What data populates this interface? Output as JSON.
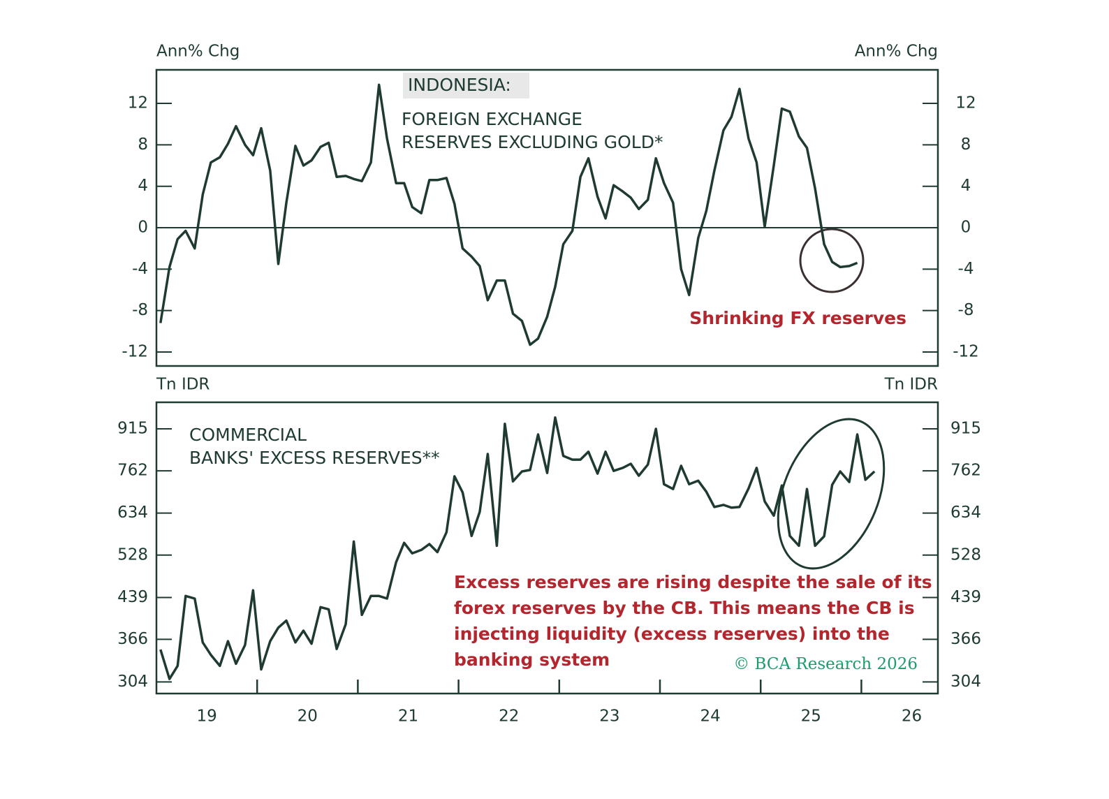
{
  "chart_data": [
    {
      "type": "line",
      "title": "INDONESIA:",
      "subtitle": [
        "FOREIGN EXCHANGE",
        "RESERVES EXCLUDING GOLD*"
      ],
      "y_label": "Ann% Chg",
      "annotation": "Shrinking FX reserves",
      "xlim": [
        2019,
        2026.76
      ],
      "ylim": [
        -13.35,
        15.24
      ],
      "yticks": [
        -12,
        -8,
        -4,
        0,
        4,
        8,
        12
      ],
      "series": [
        {
          "color": "#1f3a33",
          "x": [
            2019.04,
            2019.13,
            2019.21,
            2019.29,
            2019.38,
            2019.46,
            2019.54,
            2019.63,
            2019.71,
            2019.79,
            2019.88,
            2019.96,
            2020.04,
            2020.13,
            2020.21,
            2020.29,
            2020.38,
            2020.46,
            2020.54,
            2020.63,
            2020.71,
            2020.79,
            2020.88,
            2020.96,
            2021.04,
            2021.13,
            2021.21,
            2021.29,
            2021.38,
            2021.46,
            2021.54,
            2021.63,
            2021.71,
            2021.79,
            2021.88,
            2021.96,
            2022.04,
            2022.13,
            2022.21,
            2022.29,
            2022.38,
            2022.46,
            2022.54,
            2022.63,
            2022.71,
            2022.79,
            2022.88,
            2022.96,
            2023.04,
            2023.13,
            2023.21,
            2023.29,
            2023.38,
            2023.46,
            2023.54,
            2023.63,
            2023.71,
            2023.79,
            2023.88,
            2023.96,
            2024.04,
            2024.13,
            2024.21,
            2024.29,
            2024.38,
            2024.46,
            2024.54,
            2024.63,
            2024.71,
            2024.79,
            2024.88,
            2024.96,
            2025.04,
            2025.13,
            2025.21,
            2025.29,
            2025.38,
            2025.46,
            2025.54,
            2025.63,
            2025.71,
            2025.79,
            2025.88,
            2025.96
          ],
          "values": [
            -9.2,
            -3.8,
            -1.1,
            -0.3,
            -2.0,
            3.2,
            6.3,
            6.8,
            8.1,
            9.8,
            8.0,
            7.0,
            9.6,
            5.5,
            -3.5,
            2.4,
            7.9,
            6.0,
            6.5,
            7.8,
            8.2,
            4.9,
            5.0,
            4.7,
            4.5,
            6.3,
            13.8,
            8.6,
            4.3,
            4.3,
            2.0,
            1.4,
            4.6,
            4.6,
            4.8,
            2.3,
            -2.0,
            -2.8,
            -3.7,
            -7.0,
            -5.1,
            -5.1,
            -8.3,
            -9.0,
            -11.3,
            -10.7,
            -8.6,
            -5.7,
            -1.6,
            -0.3,
            4.9,
            6.7,
            3.0,
            0.9,
            4.1,
            3.5,
            2.9,
            1.8,
            2.7,
            6.7,
            4.3,
            2.4,
            -4.0,
            -6.5,
            -1.0,
            1.6,
            5.5,
            9.4,
            10.7,
            13.4,
            8.6,
            6.3,
            0.1,
            6.0,
            11.5,
            11.2,
            8.8,
            7.7,
            3.8,
            -1.6,
            -3.3,
            -3.8,
            -3.7,
            -3.4
          ]
        }
      ]
    },
    {
      "type": "line",
      "subtitle": [
        "COMMERCIAL",
        "BANKS' EXCESS RESERVES**"
      ],
      "y_label": "Tn IDR",
      "annotation": [
        "Excess reserves are rising despite the sale of its",
        "forex reserves by the CB. This means the CB is",
        "injecting liquidity (excess reserves) into the",
        "banking system"
      ],
      "source": "© BCA Research 2026",
      "log_scale": true,
      "xlim": [
        2019,
        2026.76
      ],
      "xticks": [
        {
          "value": 2019.5,
          "label": "19"
        },
        {
          "value": 2020.5,
          "label": "20"
        },
        {
          "value": 2021.5,
          "label": "21"
        },
        {
          "value": 2022.5,
          "label": "22"
        },
        {
          "value": 2023.5,
          "label": "23"
        },
        {
          "value": 2024.5,
          "label": "24"
        },
        {
          "value": 2025.5,
          "label": "25"
        },
        {
          "value": 2026.5,
          "label": "26"
        }
      ],
      "ylim": [
        289,
        1027
      ],
      "yticks": [
        304,
        366,
        439,
        528,
        634,
        762,
        915
      ],
      "series": [
        {
          "color": "#1f3a33",
          "x": [
            2019.04,
            2019.13,
            2019.21,
            2019.29,
            2019.38,
            2019.46,
            2019.54,
            2019.63,
            2019.71,
            2019.79,
            2019.88,
            2019.96,
            2020.04,
            2020.13,
            2020.21,
            2020.29,
            2020.38,
            2020.46,
            2020.54,
            2020.63,
            2020.71,
            2020.79,
            2020.88,
            2020.96,
            2021.04,
            2021.13,
            2021.21,
            2021.29,
            2021.38,
            2021.46,
            2021.54,
            2021.63,
            2021.71,
            2021.79,
            2021.88,
            2021.96,
            2022.04,
            2022.13,
            2022.21,
            2022.29,
            2022.38,
            2022.46,
            2022.54,
            2022.63,
            2022.71,
            2022.79,
            2022.88,
            2022.96,
            2023.04,
            2023.13,
            2023.21,
            2023.29,
            2023.38,
            2023.46,
            2023.54,
            2023.63,
            2023.71,
            2023.79,
            2023.88,
            2023.96,
            2024.04,
            2024.13,
            2024.21,
            2024.29,
            2024.38,
            2024.46,
            2024.54,
            2024.63,
            2024.71,
            2024.79,
            2024.88,
            2024.96,
            2025.04,
            2025.13,
            2025.21,
            2025.29,
            2025.38,
            2025.46,
            2025.54,
            2025.63,
            2025.71,
            2025.79,
            2025.88,
            2025.96,
            2026.04,
            2026.13
          ],
          "values": [
            350,
            308,
            326,
            442,
            437,
            361,
            342,
            326,
            363,
            329,
            357,
            453,
            321,
            363,
            385,
            397,
            361,
            380,
            359,
            421,
            417,
            351,
            391,
            560,
            407,
            442,
            442,
            437,
            512,
            557,
            532,
            540,
            554,
            535,
            583,
            744,
            694,
            574,
            637,
            820,
            550,
            935,
            728,
            760,
            765,
            893,
            755,
            961,
            813,
            800,
            800,
            828,
            753,
            828,
            762,
            772,
            786,
            746,
            783,
            915,
            719,
            704,
            779,
            719,
            730,
            696,
            651,
            657,
            649,
            651,
            706,
            772,
            667,
            627,
            715,
            574,
            550,
            704,
            550,
            573,
            717,
            760,
            726,
            893,
            733,
            760
          ]
        }
      ]
    }
  ]
}
